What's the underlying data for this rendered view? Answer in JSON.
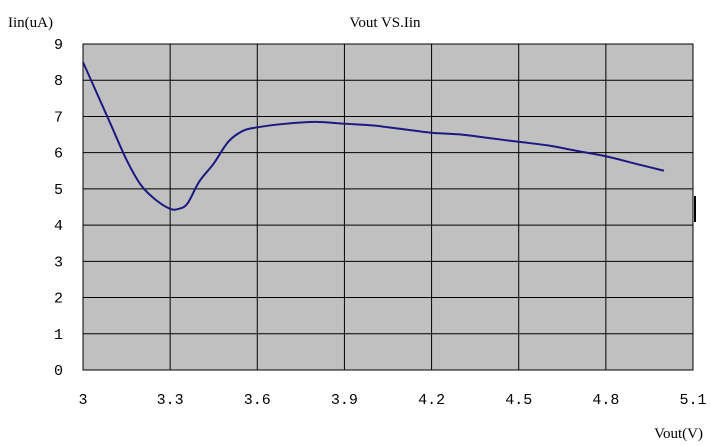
{
  "chart_data": {
    "type": "line",
    "title": "Vout VS.Iin",
    "xlabel": "Vout(V)",
    "ylabel": "Iin(uA)",
    "xlim": [
      3,
      5.1
    ],
    "ylim": [
      0,
      9
    ],
    "grid": true,
    "x_ticks": [
      "3",
      "3.3",
      "3.6",
      "3.9",
      "4.2",
      "4.5",
      "4.8",
      "5.1"
    ],
    "y_ticks": [
      "0",
      "1",
      "2",
      "3",
      "4",
      "5",
      "6",
      "7",
      "8",
      "9"
    ],
    "series": [
      {
        "color": "#1a1a80",
        "x": [
          3.0,
          3.05,
          3.1,
          3.15,
          3.2,
          3.25,
          3.3,
          3.33,
          3.36,
          3.4,
          3.45,
          3.5,
          3.55,
          3.6,
          3.7,
          3.8,
          3.9,
          4.0,
          4.1,
          4.2,
          4.3,
          4.4,
          4.5,
          4.6,
          4.7,
          4.8,
          4.9,
          5.0
        ],
        "y": [
          8.5,
          7.6,
          6.7,
          5.8,
          5.1,
          4.7,
          4.45,
          4.45,
          4.6,
          5.2,
          5.7,
          6.3,
          6.6,
          6.7,
          6.8,
          6.85,
          6.8,
          6.75,
          6.65,
          6.55,
          6.5,
          6.4,
          6.3,
          6.2,
          6.05,
          5.9,
          5.7,
          5.5
        ]
      }
    ]
  }
}
